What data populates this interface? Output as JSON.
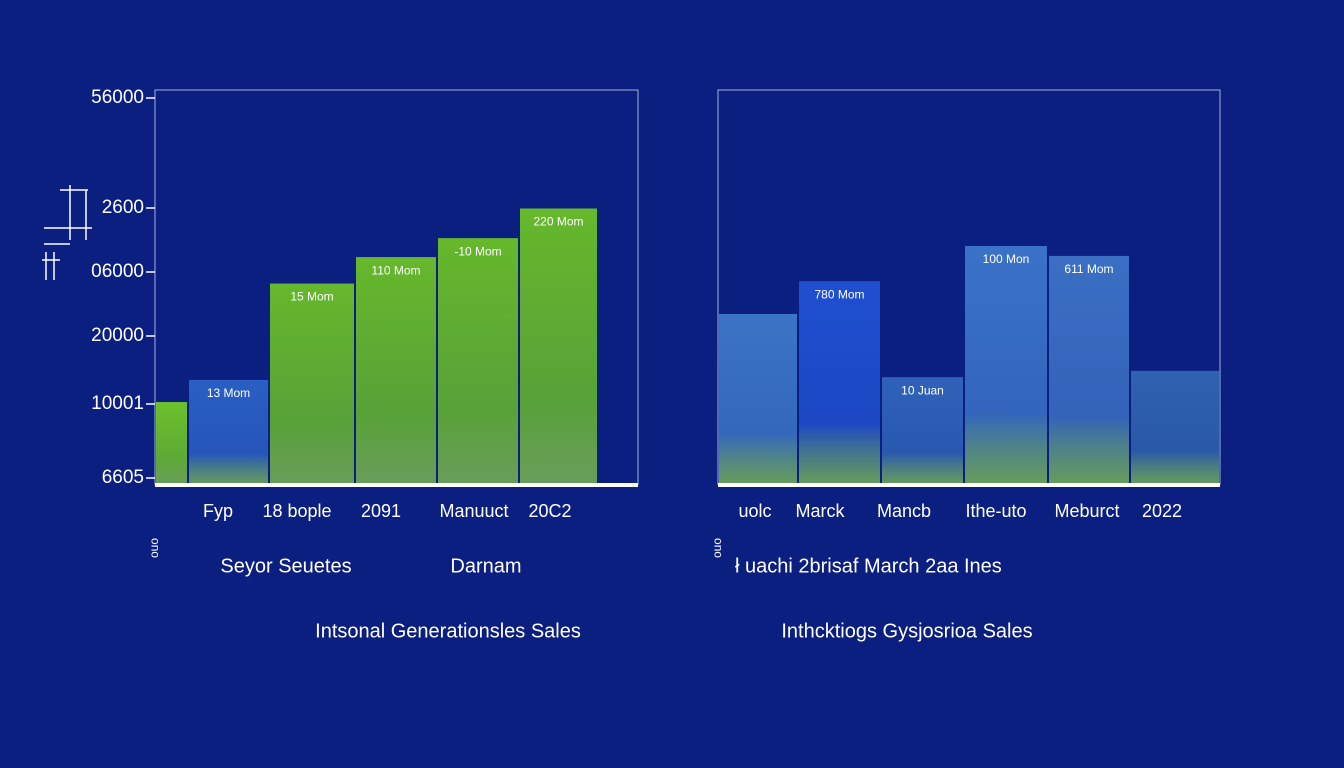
{
  "chart_data": [
    {
      "type": "bar",
      "title": "Intsonal Generationsles Sales",
      "x_axis_labels": [
        "Seyor Seuetes",
        "Darnam"
      ],
      "side_label": "ouo",
      "y_axis_labels": [
        "56000",
        "2600",
        "06000",
        "20000",
        "10001",
        "6605"
      ],
      "categories": [
        null,
        "Fyp",
        "18 bople",
        "2091",
        "Manuuct",
        "20C2"
      ],
      "values": [
        21,
        26.6,
        51,
        57.7,
        62.5,
        70
      ],
      "bar_labels": [
        null,
        "13 Mom",
        "15 Mom",
        "110 Mom",
        "-10 Mom",
        "220 Mom"
      ],
      "colors": [
        "#6cc12a",
        "#2a5fc4",
        "#66b82c",
        "#66b82c",
        "#66b82c",
        "#66b82c"
      ],
      "ylim": [
        0,
        100
      ]
    },
    {
      "type": "bar",
      "title": "Inthcktiogs Gysjosrioa Sales",
      "x_axis_labels": [
        "ł uachi  2brisaf March 2aa Ines"
      ],
      "side_label": "ouo",
      "categories": [
        "uolc",
        "Marck",
        "Mancb",
        "Ithe-uto",
        "Meburct",
        "2022"
      ],
      "values": [
        43.3,
        51.6,
        27.3,
        60.5,
        58,
        28.9
      ],
      "bar_labels": [
        null,
        "780 Mom",
        "10 Juan",
        "100 Mon",
        "611 Mom",
        null
      ],
      "colors": [
        "#3b74c6",
        "#1f4fd0",
        "#2f62b8",
        "#3a72c8",
        "#3a6fc4",
        "#2f62b0"
      ],
      "ylim": [
        0,
        100
      ]
    }
  ]
}
